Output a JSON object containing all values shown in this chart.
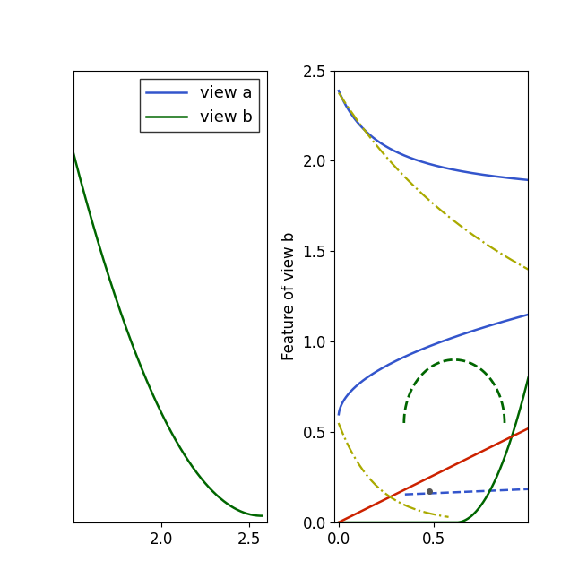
{
  "figsize": [
    6.55,
    6.55
  ],
  "dpi": 100,
  "left_xlim": [
    1.5,
    2.6
  ],
  "left_ylim": [
    -0.02,
    1.35
  ],
  "left_xticks": [
    2.0,
    2.5
  ],
  "right_xlim": [
    -0.02,
    1.0
  ],
  "right_ylim": [
    0.0,
    2.5
  ],
  "right_xticks": [
    0.0,
    0.5
  ],
  "right_yticks": [
    0.0,
    0.5,
    1.0,
    1.5,
    2.0,
    2.5
  ],
  "ylabel_right": "Feature of view b",
  "color_blue": "#3355cc",
  "color_green": "#006600",
  "color_red": "#cc2200",
  "color_olive": "#aaaa00",
  "legend_labels": [
    "view a",
    "view b"
  ],
  "legend_colors": [
    "#3355cc",
    "#006600"
  ],
  "tick_fontsize": 12,
  "label_fontsize": 12,
  "legend_fontsize": 13,
  "lw": 1.8
}
